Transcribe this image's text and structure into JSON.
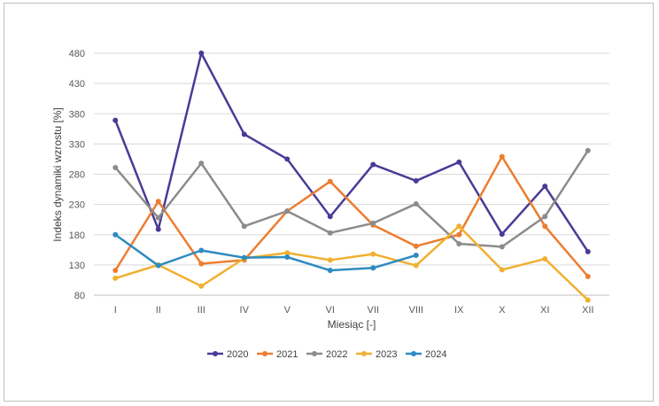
{
  "chart_data": {
    "type": "line",
    "title": "",
    "xlabel": "Miesiąc [-]",
    "ylabel": "Indeks dynamiki wzrostu [%]",
    "categories": [
      "I",
      "II",
      "III",
      "IV",
      "V",
      "VI",
      "VII",
      "VIII",
      "IX",
      "X",
      "XI",
      "XII"
    ],
    "ylim": [
      80,
      480
    ],
    "yticks": [
      "80",
      "130",
      "180",
      "230",
      "280",
      "330",
      "380",
      "430",
      "480"
    ],
    "grid": "horizontal",
    "legend_position": "bottom",
    "series": [
      {
        "name": "2020",
        "color": "#4a3b97",
        "values": [
          369,
          189,
          480,
          346,
          305,
          210,
          296,
          269,
          300,
          181,
          260,
          152
        ]
      },
      {
        "name": "2021",
        "color": "#ed7d31",
        "values": [
          121,
          235,
          132,
          138,
          219,
          268,
          196,
          161,
          180,
          309,
          194,
          111
        ]
      },
      {
        "name": "2022",
        "color": "#8c8c8c",
        "values": [
          291,
          208,
          298,
          194,
          219,
          183,
          199,
          231,
          165,
          160,
          210,
          319
        ]
      },
      {
        "name": "2023",
        "color": "#f0b030",
        "values": [
          108,
          130,
          95,
          141,
          150,
          138,
          148,
          129,
          194,
          122,
          140,
          72
        ]
      },
      {
        "name": "2024",
        "color": "#2e8bc0",
        "values": [
          180,
          129,
          154,
          142,
          143,
          121,
          125,
          146,
          null,
          null,
          null,
          null
        ]
      }
    ]
  }
}
